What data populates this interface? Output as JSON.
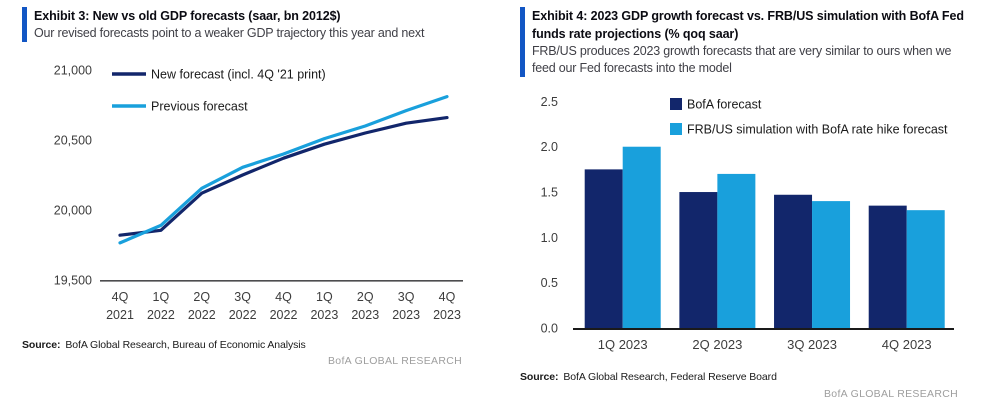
{
  "colors": {
    "accent_bar": "#1256C4",
    "navy": "#12266B",
    "light_blue": "#19A0DC",
    "axis_text": "#3d3d3d",
    "line_axis": "#4d4d4f",
    "bar_axis": "#1a1a1a",
    "watermark_gray": "#9e9e9e"
  },
  "left_panel": {
    "exhibit_title": "Exhibit 3: New vs old GDP forecasts (saar, bn 2012$)",
    "subtitle": "Our revised forecasts point to a weaker GDP trajectory this year and next",
    "source_label": "Source:",
    "source_text": "BofA Global Research, Bureau of Economic Analysis",
    "watermark": "BofA GLOBAL RESEARCH"
  },
  "right_panel": {
    "exhibit_title": "Exhibit 4: 2023 GDP growth forecast vs. FRB/US simulation with BofA Fed funds rate projections (% qoq saar)",
    "subtitle": "FRB/US produces 2023 growth forecasts that are very similar to ours when we feed our Fed forecasts into the model",
    "source_label": "Source:",
    "source_text": "BofA Global Research, Federal Reserve Board",
    "watermark": "BofA GLOBAL RESEARCH"
  },
  "chart_data": [
    {
      "type": "line",
      "title": "New vs old GDP forecasts (saar, bn 2012$)",
      "categories": [
        "4Q 2021",
        "1Q 2022",
        "2Q 2022",
        "3Q 2022",
        "4Q 2022",
        "1Q 2023",
        "2Q 2023",
        "3Q 2023",
        "4Q 2023"
      ],
      "series": [
        {
          "id": "new-forecast",
          "name": "New forecast (incl. 4Q '21 print)",
          "color": "#12266B",
          "values": [
            19820,
            19855,
            20120,
            20250,
            20370,
            20470,
            20550,
            20620,
            20660
          ]
        },
        {
          "id": "previous-forecast",
          "name": "Previous forecast",
          "color": "#19A0DC",
          "values": [
            19765,
            19890,
            20155,
            20305,
            20400,
            20510,
            20600,
            20710,
            20810
          ]
        }
      ],
      "ylim": [
        19500,
        21000
      ],
      "ytick_values": [
        21000,
        20500,
        20000,
        19500
      ],
      "ytick_labels": [
        "21,000",
        "20,500",
        "20,000",
        "19,500"
      ],
      "grid": false,
      "legend_position": "inside-top-left"
    },
    {
      "type": "bar",
      "title": "2023 GDP growth forecast vs. FRB/US simulation (% qoq saar)",
      "categories": [
        "1Q 2023",
        "2Q 2023",
        "3Q 2023",
        "4Q 2023"
      ],
      "series": [
        {
          "id": "bofa-forecast",
          "name": "BofA forecast",
          "color": "#12266B",
          "values": [
            1.75,
            1.5,
            1.47,
            1.35
          ]
        },
        {
          "id": "frbus-simulation",
          "name": "FRB/US simulation with BofA rate hike forecast",
          "color": "#19A0DC",
          "values": [
            2.0,
            1.7,
            1.4,
            1.3
          ]
        }
      ],
      "ylim": [
        0,
        2.5
      ],
      "ytick_values": [
        2.5,
        2.0,
        1.5,
        1.0,
        0.5,
        0.0
      ],
      "ytick_labels": [
        "2.5",
        "2.0",
        "1.5",
        "1.0",
        "0.5",
        "0.0"
      ],
      "grid": false,
      "legend_position": "inside-top"
    }
  ]
}
